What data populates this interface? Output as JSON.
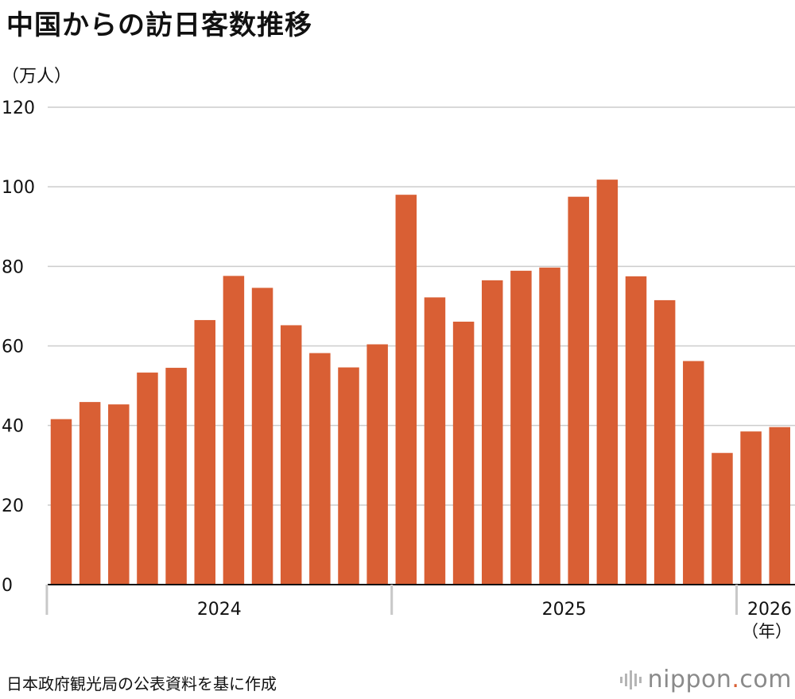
{
  "title": "中国からの訪日客数推移",
  "source": "日本政府観光局の公表資料を基に作成",
  "brand": {
    "name": "nippon",
    "dot": ".",
    "tld": "com"
  },
  "colors": {
    "bar": "#d95f34",
    "grid": "#cccccc",
    "axis": "#111111",
    "brand_dot": "#d95f34"
  },
  "chart_data": {
    "type": "bar",
    "unit_label": "（万人）",
    "year_unit_label": "（年）",
    "ylim": [
      0,
      120
    ],
    "yticks": [
      0,
      20,
      40,
      60,
      80,
      100,
      120
    ],
    "grid": true,
    "year_groups": [
      {
        "label": "2024",
        "start": 0,
        "count": 12
      },
      {
        "label": "2025",
        "start": 12,
        "count": 12
      },
      {
        "label": "2026",
        "start": 24,
        "count": 2
      }
    ],
    "values": [
      41.6,
      45.9,
      45.3,
      53.3,
      54.5,
      66.5,
      77.6,
      74.6,
      65.2,
      58.2,
      54.6,
      60.4,
      98.0,
      72.2,
      66.1,
      76.5,
      78.9,
      79.7,
      97.5,
      101.8,
      77.5,
      71.5,
      56.2,
      33.1,
      38.5,
      39.6
    ]
  }
}
